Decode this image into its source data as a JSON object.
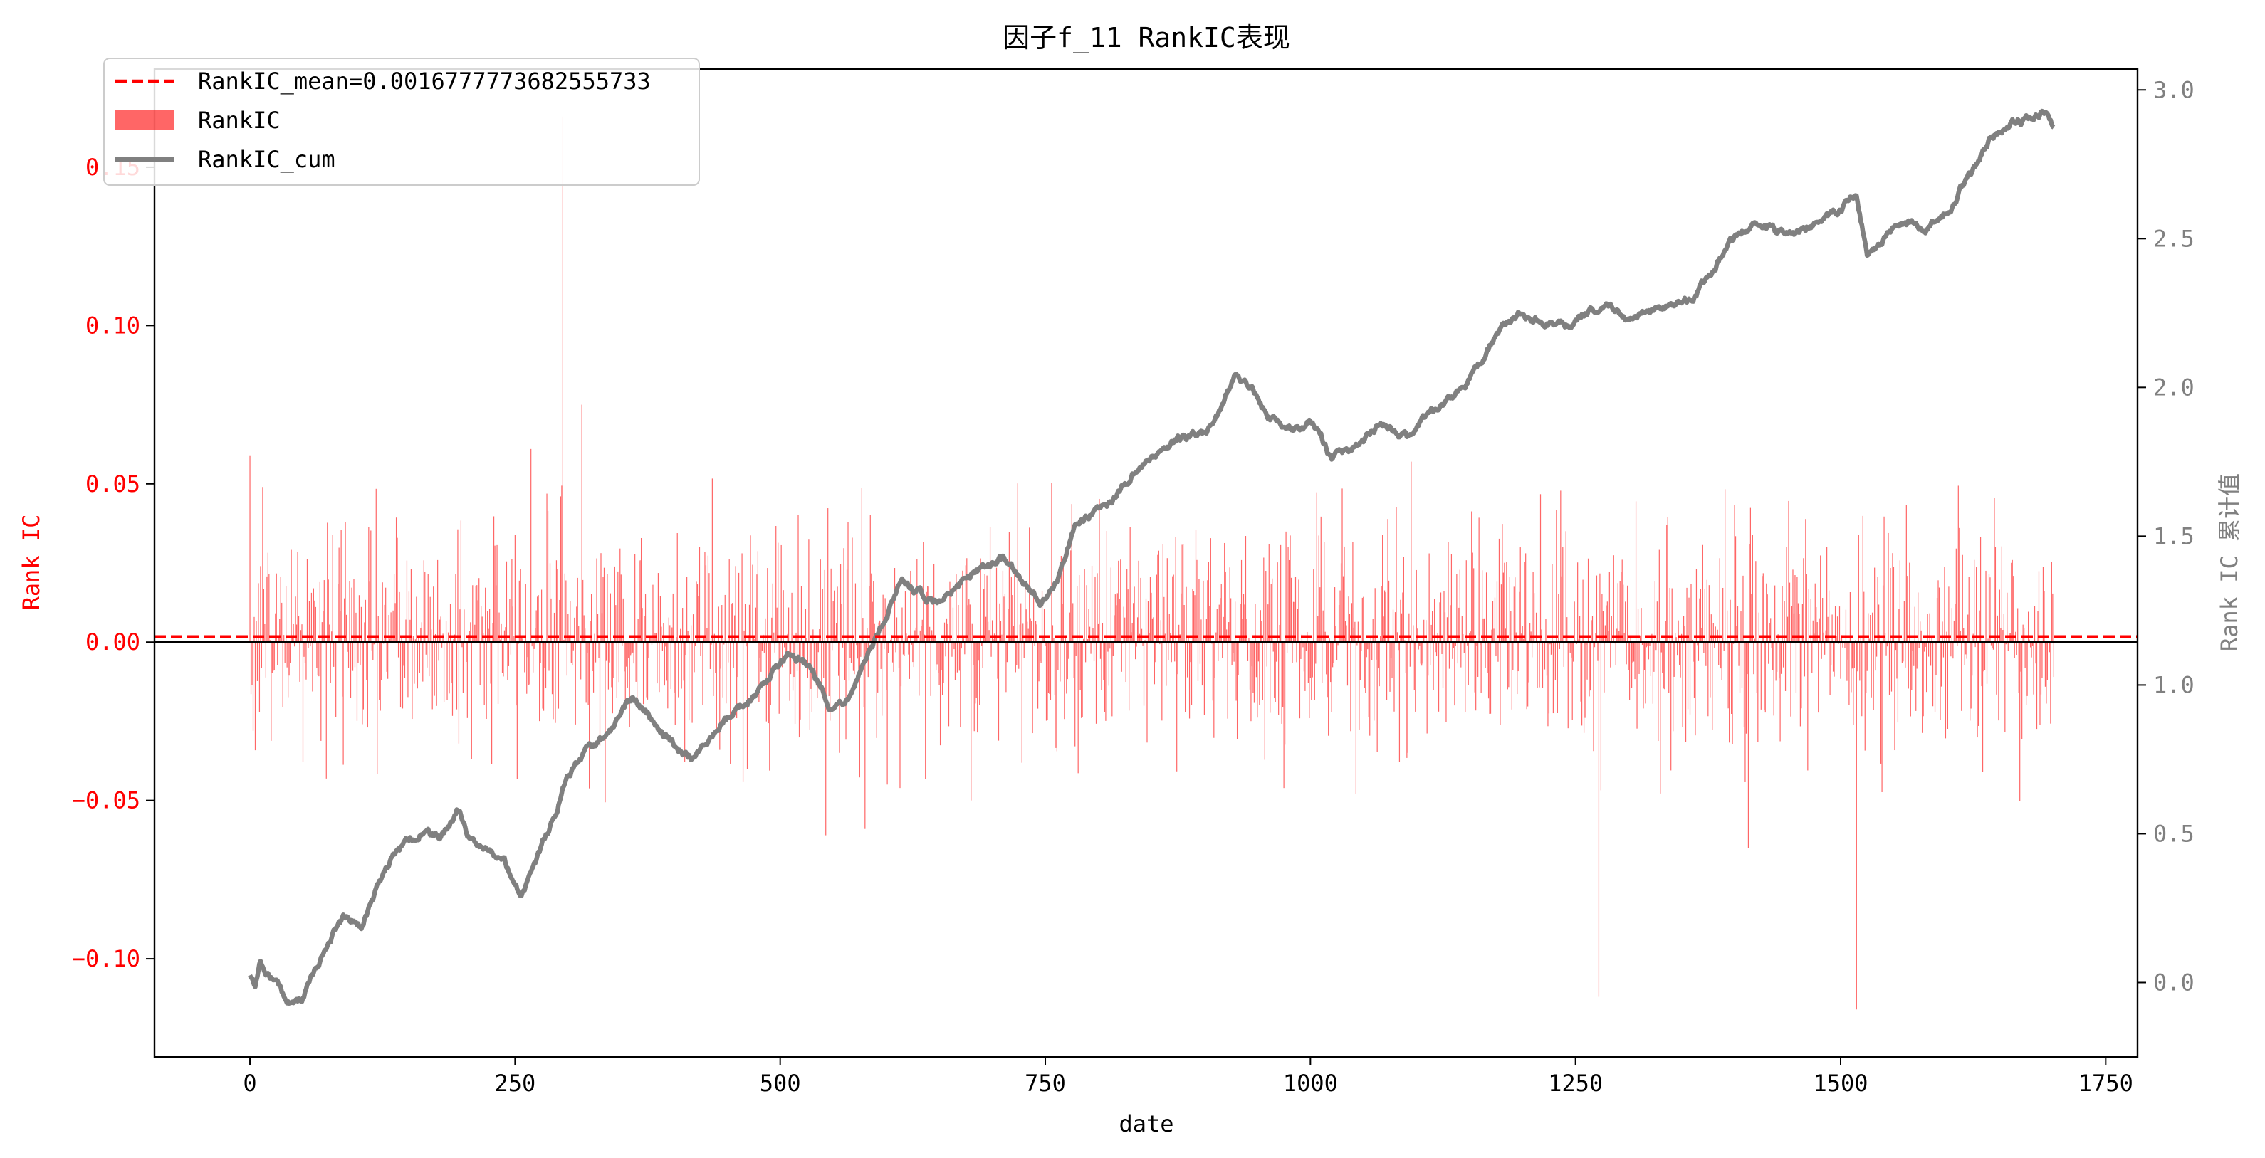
{
  "chart_data": {
    "type": "bar",
    "title": "因子f_11 RankIC表现",
    "xlabel": "date",
    "ylabel_left": "Rank IC",
    "ylabel_right": "Rank IC 累计值",
    "xlim": [
      -90,
      1780
    ],
    "ylim_left": [
      -0.131,
      0.181
    ],
    "ylim_right": [
      -0.25,
      3.07
    ],
    "x_ticks": [
      0,
      250,
      500,
      750,
      1000,
      1250,
      1500,
      1750
    ],
    "x_tick_labels": [
      "0",
      "250",
      "500",
      "750",
      "1000",
      "1250",
      "1500",
      "1750"
    ],
    "y_left_ticks": [
      -0.1,
      -0.05,
      0.0,
      0.05,
      0.1,
      0.15
    ],
    "y_left_tick_labels": [
      "−0.10",
      "−0.05",
      "0.00",
      "0.05",
      "0.10",
      "0.15"
    ],
    "y_right_ticks": [
      0.0,
      0.5,
      1.0,
      1.5,
      2.0,
      2.5,
      3.0
    ],
    "y_right_tick_labels": [
      "0.0",
      "0.5",
      "1.0",
      "1.5",
      "2.0",
      "2.5",
      "3.0"
    ],
    "legend_position": "top-left",
    "colors": {
      "bar": "#ff0000",
      "bar_opacity": 0.6,
      "mean_line": "#ff0000",
      "cum_line": "#808080",
      "left_axis_text": "#ff0000",
      "right_axis_text": "#808080",
      "zero_line": "#000000"
    },
    "n_days": 1702,
    "mean": 0.0016777773682555733,
    "series": [
      {
        "name": "RankIC_mean=0.0016777773682555733",
        "kind": "hline",
        "value": 0.0016777773682555733
      },
      {
        "name": "RankIC",
        "kind": "bar",
        "generation": {
          "std": 0.0185,
          "max_abs": 0.052
        },
        "spikes": [
          {
            "x": 0,
            "value": 0.059
          },
          {
            "x": 3,
            "value": -0.028
          },
          {
            "x": 12,
            "value": 0.049
          },
          {
            "x": 265,
            "value": 0.061
          },
          {
            "x": 295,
            "value": 0.166
          },
          {
            "x": 313,
            "value": 0.075
          },
          {
            "x": 543,
            "value": -0.061
          },
          {
            "x": 580,
            "value": -0.059
          },
          {
            "x": 680,
            "value": -0.05
          },
          {
            "x": 1095,
            "value": 0.057
          },
          {
            "x": 1272,
            "value": -0.112
          },
          {
            "x": 1413,
            "value": -0.065
          },
          {
            "x": 1515,
            "value": -0.116
          }
        ]
      },
      {
        "name": "RankIC_cum",
        "kind": "line",
        "axis": "right",
        "anchors": [
          [
            0,
            0.02
          ],
          [
            5,
            0.0
          ],
          [
            10,
            0.07
          ],
          [
            20,
            0.02
          ],
          [
            30,
            -0.04
          ],
          [
            40,
            -0.08
          ],
          [
            50,
            -0.05
          ],
          [
            60,
            0.03
          ],
          [
            75,
            0.15
          ],
          [
            90,
            0.22
          ],
          [
            105,
            0.18
          ],
          [
            120,
            0.32
          ],
          [
            140,
            0.45
          ],
          [
            160,
            0.5
          ],
          [
            180,
            0.48
          ],
          [
            195,
            0.58
          ],
          [
            205,
            0.5
          ],
          [
            220,
            0.45
          ],
          [
            240,
            0.4
          ],
          [
            255,
            0.3
          ],
          [
            270,
            0.4
          ],
          [
            285,
            0.55
          ],
          [
            300,
            0.7
          ],
          [
            320,
            0.78
          ],
          [
            340,
            0.85
          ],
          [
            360,
            0.95
          ],
          [
            380,
            0.88
          ],
          [
            400,
            0.8
          ],
          [
            420,
            0.75
          ],
          [
            440,
            0.85
          ],
          [
            460,
            0.92
          ],
          [
            480,
            0.98
          ],
          [
            495,
            1.06
          ],
          [
            510,
            1.12
          ],
          [
            530,
            1.05
          ],
          [
            550,
            0.92
          ],
          [
            565,
            0.95
          ],
          [
            580,
            1.08
          ],
          [
            600,
            1.22
          ],
          [
            615,
            1.35
          ],
          [
            630,
            1.32
          ],
          [
            650,
            1.28
          ],
          [
            670,
            1.34
          ],
          [
            690,
            1.4
          ],
          [
            710,
            1.42
          ],
          [
            730,
            1.35
          ],
          [
            745,
            1.28
          ],
          [
            760,
            1.34
          ],
          [
            780,
            1.55
          ],
          [
            810,
            1.6
          ],
          [
            840,
            1.75
          ],
          [
            870,
            1.82
          ],
          [
            900,
            1.85
          ],
          [
            915,
            1.93
          ],
          [
            930,
            2.05
          ],
          [
            945,
            2.0
          ],
          [
            960,
            1.9
          ],
          [
            975,
            1.88
          ],
          [
            990,
            1.85
          ],
          [
            1000,
            1.88
          ],
          [
            1010,
            1.84
          ],
          [
            1020,
            1.75
          ],
          [
            1035,
            1.78
          ],
          [
            1050,
            1.82
          ],
          [
            1065,
            1.88
          ],
          [
            1080,
            1.85
          ],
          [
            1095,
            1.82
          ],
          [
            1110,
            1.9
          ],
          [
            1125,
            1.95
          ],
          [
            1140,
            1.98
          ],
          [
            1160,
            2.08
          ],
          [
            1180,
            2.2
          ],
          [
            1200,
            2.25
          ],
          [
            1220,
            2.22
          ],
          [
            1240,
            2.2
          ],
          [
            1260,
            2.25
          ],
          [
            1280,
            2.28
          ],
          [
            1300,
            2.22
          ],
          [
            1320,
            2.25
          ],
          [
            1340,
            2.28
          ],
          [
            1360,
            2.3
          ],
          [
            1380,
            2.4
          ],
          [
            1400,
            2.5
          ],
          [
            1420,
            2.55
          ],
          [
            1440,
            2.52
          ],
          [
            1460,
            2.52
          ],
          [
            1480,
            2.57
          ],
          [
            1500,
            2.6
          ],
          [
            1515,
            2.65
          ],
          [
            1525,
            2.45
          ],
          [
            1540,
            2.5
          ],
          [
            1560,
            2.55
          ],
          [
            1580,
            2.53
          ],
          [
            1600,
            2.6
          ],
          [
            1620,
            2.7
          ],
          [
            1640,
            2.83
          ],
          [
            1660,
            2.88
          ],
          [
            1680,
            2.9
          ],
          [
            1695,
            2.92
          ],
          [
            1701,
            2.88
          ]
        ]
      }
    ]
  }
}
